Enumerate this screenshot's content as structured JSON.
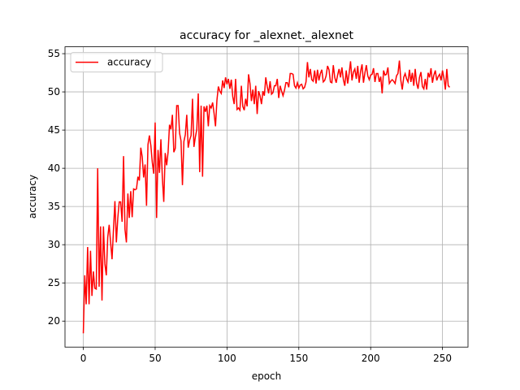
{
  "chart_data": {
    "type": "line",
    "title": "accuracy for _alexnet._alexnet",
    "x_label": "epoch",
    "y_label": "accuracy",
    "x": [
      0,
      1,
      2,
      3,
      4,
      5,
      6,
      7,
      8,
      9,
      10,
      11,
      12,
      13,
      14,
      15,
      16,
      17,
      18,
      19,
      20,
      21,
      22,
      23,
      24,
      25,
      26,
      27,
      28,
      29,
      30,
      31,
      32,
      33,
      34,
      35,
      36,
      37,
      38,
      39,
      40,
      41,
      42,
      43,
      44,
      45,
      46,
      47,
      48,
      49,
      50,
      51,
      52,
      53,
      54,
      55,
      56,
      57,
      58,
      59,
      60,
      61,
      62,
      63,
      64,
      65,
      66,
      67,
      68,
      69,
      70,
      71,
      72,
      73,
      74,
      75,
      76,
      77,
      78,
      79,
      80,
      81,
      82,
      83,
      84,
      85,
      86,
      87,
      88,
      89,
      90,
      91,
      92,
      93,
      94,
      95,
      96,
      97,
      98,
      99,
      100,
      101,
      102,
      103,
      104,
      105,
      106,
      107,
      108,
      109,
      110,
      111,
      112,
      113,
      114,
      115,
      116,
      117,
      118,
      119,
      120,
      121,
      122,
      123,
      124,
      125,
      126,
      127,
      128,
      129,
      130,
      131,
      132,
      133,
      134,
      135,
      136,
      137,
      138,
      139,
      140,
      141,
      142,
      143,
      144,
      145,
      146,
      147,
      148,
      149,
      150,
      151,
      152,
      153,
      154,
      155,
      156,
      157,
      158,
      159,
      160,
      161,
      162,
      163,
      164,
      165,
      166,
      167,
      168,
      169,
      170,
      171,
      172,
      173,
      174,
      175,
      176,
      177,
      178,
      179,
      180,
      181,
      182,
      183,
      184,
      185,
      186,
      187,
      188,
      189,
      190,
      191,
      192,
      193,
      194,
      195,
      196,
      197,
      198,
      199,
      200,
      201,
      202,
      203,
      204,
      205,
      206,
      207,
      208,
      209,
      210,
      211,
      212,
      213,
      214,
      215,
      216,
      217,
      218,
      219,
      220,
      221,
      222,
      223,
      224,
      225,
      226,
      227,
      228,
      229,
      230,
      231,
      232,
      233,
      234,
      235,
      236,
      237,
      238,
      239,
      240,
      241,
      242,
      243,
      244,
      245,
      246,
      247,
      248,
      249,
      250,
      251,
      252,
      253,
      254,
      255
    ],
    "series": [
      {
        "name": "accuracy",
        "color": "#ff0000",
        "values": [
          18.4,
          26,
          22.2,
          29.7,
          22.2,
          29.2,
          23.3,
          26.5,
          24.3,
          24.2,
          40,
          24.5,
          32.4,
          22.7,
          32.4,
          27.5,
          26,
          31,
          32.6,
          30.3,
          28.1,
          32,
          35.7,
          30.3,
          33.5,
          35.6,
          35.6,
          33,
          41.6,
          32,
          30.3,
          36.7,
          33.5,
          37,
          33.6,
          37.3,
          37.2,
          37.3,
          38.9,
          38.4,
          42.7,
          41.5,
          38.8,
          40.5,
          35.1,
          43.1,
          44.3,
          43,
          40.8,
          39.3,
          46,
          33.5,
          42.4,
          39.4,
          43.8,
          38.8,
          35.6,
          42,
          40.4,
          42.1,
          45.7,
          45.1,
          47,
          42.1,
          42.6,
          48.2,
          48.2,
          44.6,
          43.6,
          37.8,
          43.5,
          44.4,
          47,
          42.7,
          43.7,
          44.3,
          49.1,
          42.8,
          44.1,
          45.1,
          49.8,
          39.5,
          48.2,
          38.9,
          48.1,
          47.4,
          48.2,
          45.5,
          48.2,
          47.9,
          48.6,
          47.2,
          45.5,
          48.9,
          50.7,
          50.1,
          49.8,
          51.5,
          50.5,
          51.9,
          51,
          51.7,
          50.4,
          51.6,
          49.4,
          48.4,
          51.7,
          47.7,
          47.9,
          47.6,
          50.8,
          48.1,
          47.6,
          49.1,
          48.1,
          52.3,
          51.1,
          48.8,
          50.3,
          48.4,
          50.8,
          47.1,
          50.1,
          49.5,
          48.4,
          50.1,
          49.5,
          51.9,
          50.7,
          49.8,
          51.4,
          49.7,
          49.9,
          50.8,
          50.8,
          51.7,
          49.2,
          50.8,
          50.1,
          49.5,
          50.2,
          51.2,
          51.2,
          50.6,
          52.4,
          52.4,
          52.3,
          50.8,
          50.5,
          51.2,
          50.5,
          50.9,
          51,
          50.4,
          50.6,
          51.3,
          53.9,
          51.9,
          53,
          51.6,
          51.4,
          52.8,
          51.1,
          52.9,
          51.5,
          52.4,
          52.9,
          51.3,
          51.5,
          52.1,
          53.4,
          52.9,
          51.3,
          51.2,
          53.5,
          51.9,
          51.2,
          52.2,
          53,
          51.9,
          53.2,
          51.6,
          50.8,
          52.8,
          51.1,
          52.4,
          54,
          51.5,
          52.6,
          53,
          51.7,
          53.4,
          51.2,
          52.7,
          53.6,
          51.2,
          52.5,
          53.5,
          52.1,
          51.6,
          52.2,
          52.3,
          53.1,
          51.3,
          52.4,
          52.4,
          51.3,
          52,
          49.8,
          52.8,
          52.2,
          52.3,
          53.2,
          51.1,
          51.4,
          51.6,
          51.4,
          51.1,
          52.1,
          52.4,
          54.1,
          51.5,
          50.3,
          51.9,
          52.4,
          51.7,
          51.3,
          52.9,
          51.3,
          52.5,
          50.8,
          53,
          51.1,
          50.4,
          51.9,
          52.6,
          50.7,
          50.4,
          51.7,
          50.3,
          52.5,
          51.9,
          53.1,
          51.2,
          52.2,
          52.8,
          51.5,
          52,
          52.3,
          51.5,
          52.8,
          51.8,
          50.3,
          53,
          50.8,
          50.6
        ]
      }
    ],
    "xlim": [
      -12.75,
      267.75
    ],
    "xticks": [
      0,
      50,
      100,
      150,
      200,
      250
    ],
    "ylim": [
      16.6,
      55.9
    ],
    "yticks": [
      20,
      25,
      30,
      35,
      40,
      45,
      50,
      55
    ],
    "grid": true,
    "legend": "upper left"
  }
}
